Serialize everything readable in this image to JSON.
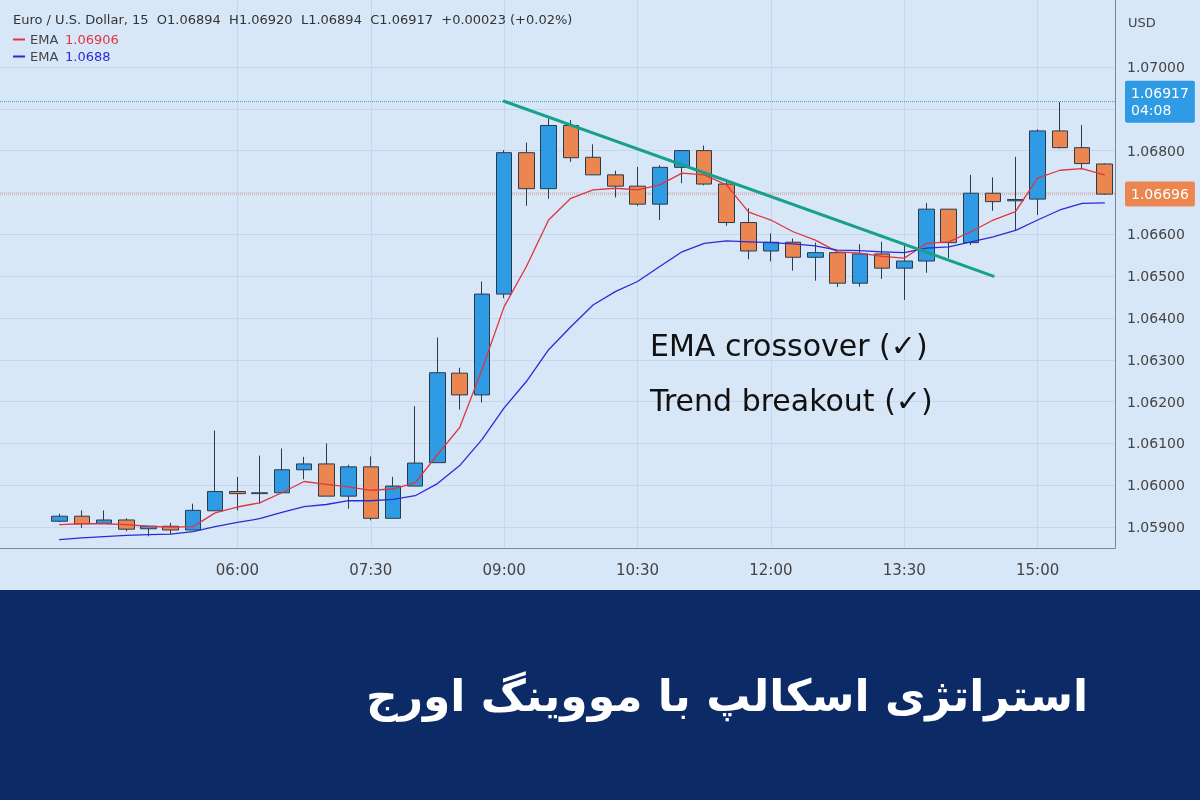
{
  "chart_data": {
    "type": "candlestick",
    "title": "استراتژی اسکالپ با مووینگ اورج",
    "subtitle": "Euro / U.S. Dollar, 15  O1.06894  H1.06920  L1.06894  C1.06917  +0.00023 (+0.02%)",
    "ylabel": "USD",
    "x": [
      4,
      4.25,
      4.5,
      4.75,
      5,
      5.25,
      5.5,
      5.75,
      6,
      6.25,
      6.5,
      6.75,
      7,
      7.25,
      7.5,
      7.75,
      8,
      8.25,
      8.5,
      8.75,
      9,
      9.25,
      9.5,
      9.75,
      10,
      10.25,
      10.5,
      10.75,
      11,
      11.25,
      11.5,
      11.75,
      12,
      12.25,
      12.5,
      12.75,
      13,
      13.25,
      13.5,
      13.75,
      14,
      14.25,
      14.5,
      14.75,
      15,
      15.25,
      15.5,
      15.75
    ],
    "ohlc": [
      [
        1.05914,
        1.05932,
        1.05912,
        1.05926
      ],
      [
        1.05926,
        1.0594,
        1.05898,
        1.05908
      ],
      [
        1.05909,
        1.0594,
        1.05908,
        1.05917
      ],
      [
        1.05917,
        1.05921,
        1.0589,
        1.05895
      ],
      [
        1.05896,
        1.05903,
        1.05878,
        1.05902
      ],
      [
        1.05902,
        1.0591,
        1.05882,
        1.05893
      ],
      [
        1.05893,
        1.05956,
        1.05893,
        1.0594
      ],
      [
        1.05939,
        1.06131,
        1.05939,
        1.05985
      ],
      [
        1.05985,
        1.0602,
        1.0594,
        1.0598
      ],
      [
        1.0598,
        1.06071,
        1.05956,
        1.05982
      ],
      [
        1.05982,
        1.06088,
        1.05982,
        1.06037
      ],
      [
        1.06037,
        1.06068,
        1.06014,
        1.06051
      ],
      [
        1.06051,
        1.061,
        1.05974,
        1.05974
      ],
      [
        1.05974,
        1.06049,
        1.05944,
        1.06044
      ],
      [
        1.06044,
        1.06069,
        1.05916,
        1.05921
      ],
      [
        1.05921,
        1.0602,
        1.05921,
        1.05998
      ],
      [
        1.05998,
        1.06189,
        1.05998,
        1.06053
      ],
      [
        1.06054,
        1.06353,
        1.06054,
        1.06269
      ],
      [
        1.06268,
        1.06281,
        1.06181,
        1.06216
      ],
      [
        1.06216,
        1.06487,
        1.06198,
        1.06457
      ],
      [
        1.06457,
        1.06801,
        1.06447,
        1.06795
      ],
      [
        1.06795,
        1.06819,
        1.06668,
        1.06709
      ],
      [
        1.06709,
        1.06876,
        1.06685,
        1.0686
      ],
      [
        1.0686,
        1.06873,
        1.06773,
        1.06783
      ],
      [
        1.06784,
        1.06815,
        1.06742,
        1.06742
      ],
      [
        1.06742,
        1.06752,
        1.06688,
        1.06715
      ],
      [
        1.06715,
        1.06761,
        1.06668,
        1.06672
      ],
      [
        1.06672,
        1.06765,
        1.06634,
        1.0676
      ],
      [
        1.0676,
        1.068,
        1.06722,
        1.068
      ],
      [
        1.068,
        1.06812,
        1.06717,
        1.0672
      ],
      [
        1.0672,
        1.06731,
        1.0662,
        1.06628
      ],
      [
        1.06628,
        1.06662,
        1.0654,
        1.0656
      ],
      [
        1.0656,
        1.06602,
        1.06535,
        1.06581
      ],
      [
        1.06581,
        1.0659,
        1.06513,
        1.06545
      ],
      [
        1.06545,
        1.0658,
        1.06489,
        1.06556
      ],
      [
        1.06556,
        1.06556,
        1.06474,
        1.06483
      ],
      [
        1.06483,
        1.06576,
        1.06475,
        1.06553
      ],
      [
        1.06553,
        1.06582,
        1.06493,
        1.06519
      ],
      [
        1.06519,
        1.06574,
        1.06443,
        1.06536
      ],
      [
        1.06536,
        1.06675,
        1.06508,
        1.0666
      ],
      [
        1.0666,
        1.0666,
        1.06543,
        1.0658
      ],
      [
        1.0658,
        1.06742,
        1.06574,
        1.06698
      ],
      [
        1.06698,
        1.06736,
        1.06656,
        1.06678
      ],
      [
        1.0668,
        1.06785,
        1.0661,
        1.06683
      ],
      [
        1.06684,
        1.06851,
        1.06646,
        1.06847
      ],
      [
        1.06847,
        1.06916,
        1.06805,
        1.06807
      ],
      [
        1.06807,
        1.06861,
        1.06755,
        1.06769
      ],
      [
        1.06768,
        1.0677,
        1.06694,
        1.06696
      ]
    ],
    "colors": [
      "#2f9be5",
      "#ec8650",
      "#2f9be5",
      "#ec8650",
      "#2f9be5",
      "#ec8650",
      "#2f9be5",
      "#2f9be5",
      "#ec8650",
      "#2f9be5",
      "#2f9be5",
      "#2f9be5",
      "#ec8650",
      "#2f9be5",
      "#ec8650",
      "#2f9be5",
      "#2f9be5",
      "#2f9be5",
      "#ec8650",
      "#2f9be5",
      "#2f9be5",
      "#ec8650",
      "#2f9be5",
      "#ec8650",
      "#ec8650",
      "#ec8650",
      "#ec8650",
      "#2f9be5",
      "#2f9be5",
      "#ec8650",
      "#ec8650",
      "#ec8650",
      "#2f9be5",
      "#ec8650",
      "#2f9be5",
      "#ec8650",
      "#2f9be5",
      "#ec8650",
      "#2f9be5",
      "#2f9be5",
      "#ec8650",
      "#2f9be5",
      "#ec8650",
      "#2f9be5",
      "#2f9be5",
      "#ec8650",
      "#ec8650",
      "#ec8650"
    ],
    "series": [
      {
        "type": "line",
        "name": "EMA 1.06906",
        "color": "#e0353f",
        "values": [
          1.05906,
          1.05908,
          1.05908,
          1.05906,
          1.05902,
          1.059,
          1.05901,
          1.05934,
          1.05948,
          1.05958,
          1.05982,
          1.06009,
          1.06002,
          1.05996,
          1.05988,
          1.05991,
          1.06006,
          1.06073,
          1.06138,
          1.06276,
          1.06427,
          1.06523,
          1.06634,
          1.06686,
          1.06706,
          1.0671,
          1.06706,
          1.06718,
          1.06746,
          1.06742,
          1.06718,
          1.06653,
          1.06634,
          1.06606,
          1.06586,
          1.06558,
          1.06555,
          1.06547,
          1.06543,
          1.06578,
          1.06582,
          1.06606,
          1.06634,
          1.06654,
          1.06734,
          1.06753,
          1.06757,
          1.06742
        ]
      },
      {
        "type": "line",
        "name": "EMA 1.0688",
        "color": "#2b2bd6",
        "values": [
          1.0587,
          1.05874,
          1.05877,
          1.0588,
          1.05882,
          1.05883,
          1.05889,
          1.05901,
          1.05911,
          1.0592,
          1.05935,
          1.05949,
          1.05954,
          1.05963,
          1.05963,
          1.05966,
          1.05975,
          1.06004,
          1.06047,
          1.06109,
          1.06185,
          1.06248,
          1.06324,
          1.06379,
          1.06431,
          1.06463,
          1.06487,
          1.06523,
          1.06558,
          1.06578,
          1.06584,
          1.06582,
          1.0658,
          1.06577,
          1.06572,
          1.06562,
          1.06561,
          1.06558,
          1.06556,
          1.06567,
          1.0657,
          1.06582,
          1.06594,
          1.06609,
          1.06634,
          1.06658,
          1.06674,
          1.06675
        ]
      },
      {
        "type": "line",
        "color": "#17a08a",
        "x": [
          9,
          14.5
        ],
        "values": [
          1.06918,
          1.065
        ]
      }
    ],
    "xlim": [
      3.33,
      15.87
    ],
    "xticks": [
      {
        "value": 6,
        "label": "06:00"
      },
      {
        "value": 7.5,
        "label": "07:30"
      },
      {
        "value": 9,
        "label": "09:00"
      },
      {
        "value": 10.5,
        "label": "10:30"
      },
      {
        "value": 12,
        "label": "12:00"
      },
      {
        "value": 13.5,
        "label": "13:30"
      },
      {
        "value": 15,
        "label": "15:00"
      }
    ],
    "ylim": [
      1.0585,
      1.0716
    ],
    "yticks": [
      {
        "value": 1.059,
        "label": "1.05900"
      },
      {
        "value": 1.06,
        "label": "1.06000"
      },
      {
        "value": 1.061,
        "label": "1.06100"
      },
      {
        "value": 1.062,
        "label": "1.06200"
      },
      {
        "value": 1.063,
        "label": "1.06300"
      },
      {
        "value": 1.064,
        "label": "1.06400"
      },
      {
        "value": 1.065,
        "label": "1.06500"
      },
      {
        "value": 1.066,
        "label": "1.06600"
      },
      {
        "value": 1.067,
        "label": null
      },
      {
        "value": 1.068,
        "label": "1.06800"
      },
      {
        "value": 1.069,
        "label": null
      },
      {
        "value": 1.07,
        "label": "1.07000"
      }
    ],
    "ref_lines": [
      {
        "axis": "y",
        "value": 1.06917,
        "label": "1.06917\n04:08",
        "color": "#2f9be5",
        "line_style": "dotted"
      },
      {
        "axis": "y",
        "value": 1.06696,
        "label": "1.06696",
        "color": "#ec8650",
        "line_style": "dotted"
      }
    ],
    "annotations": [
      "EMA crossover (✓)",
      "Trend breakout (✓)"
    ],
    "grid": true,
    "legend": "top left",
    "marker": "none",
    "line_style": "solid"
  }
}
